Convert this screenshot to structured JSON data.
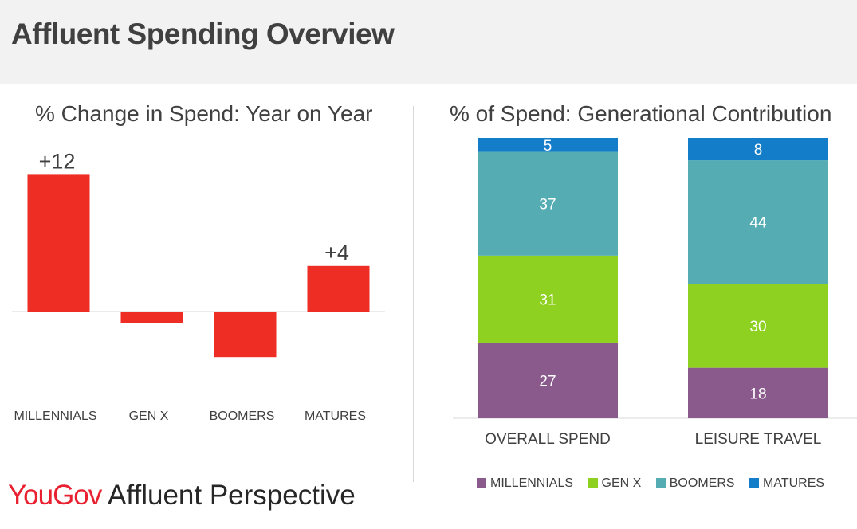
{
  "header": {
    "title": "Affluent Spending Overview"
  },
  "footer": {
    "brand_you": "You",
    "brand_gov": "Gov",
    "brand_rest": " Affluent Perspective"
  },
  "colors": {
    "red": "#ee2d24",
    "millennials": "#8a5a8c",
    "genx": "#8fd121",
    "boomers": "#55adb3",
    "matures": "#137dc9"
  },
  "chart_data": [
    {
      "type": "bar",
      "title": "% Change in Spend: Year on Year",
      "categories": [
        "MILLENNIALS",
        "GEN X",
        "BOOMERS",
        "MATURES"
      ],
      "values": [
        12,
        -1,
        -4,
        4
      ],
      "data_labels": [
        "+12",
        "",
        "",
        "+4"
      ],
      "ylim": [
        -8,
        12.5
      ],
      "grid": false,
      "legend": "none"
    },
    {
      "type": "bar",
      "stacked": true,
      "title": "% of Spend: Generational Contribution",
      "categories": [
        "OVERALL SPEND",
        "LEISURE TRAVEL"
      ],
      "series": [
        {
          "name": "MILLENNIALS",
          "values": [
            27,
            18
          ],
          "color": "#8a5a8c"
        },
        {
          "name": "GEN X",
          "values": [
            31,
            30
          ],
          "color": "#8fd121"
        },
        {
          "name": "BOOMERS",
          "values": [
            37,
            44
          ],
          "color": "#55adb3"
        },
        {
          "name": "MATURES",
          "values": [
            5,
            8
          ],
          "color": "#137dc9"
        }
      ],
      "ylim": [
        0,
        100
      ],
      "grid": false,
      "legend": "bottom"
    }
  ]
}
